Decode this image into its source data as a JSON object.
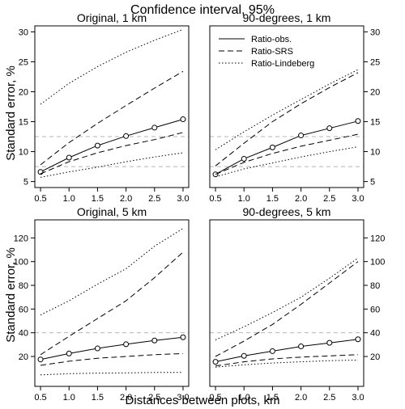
{
  "figure": {
    "title": "Confidence interval, 95%",
    "xlabel": "Distances between plots, km",
    "ylabel": "Standard error, %"
  },
  "legend": {
    "placement": "top-right panel, top-left",
    "entries": [
      {
        "label": "Ratio-obs.",
        "style": "solid",
        "marker": "circle"
      },
      {
        "label": "Ratio-SRS",
        "style": "dashed"
      },
      {
        "label": "Ratio-Lindeberg",
        "style": "dotted"
      }
    ]
  },
  "colors": {
    "line": "#000000",
    "reference_line": "#b5b5b5",
    "background": "#ffffff"
  },
  "chart_data": [
    {
      "type": "line",
      "title": "Original, 1 km",
      "x": [
        0.5,
        1.0,
        1.5,
        2.0,
        2.5,
        3.0
      ],
      "xlim": [
        0.5,
        3.0
      ],
      "ylim": [
        5,
        30
      ],
      "yticks": [
        5,
        10,
        15,
        20,
        25,
        30
      ],
      "ytick_side": "left",
      "reference_lines": [
        12.5,
        7.5
      ],
      "series": [
        {
          "name": "Ratio-obs.",
          "style": "solid",
          "markers": true,
          "values": [
            6.6,
            9.0,
            11.0,
            12.6,
            14.0,
            15.4
          ]
        },
        {
          "name": "Ratio-SRS",
          "style": "dashed",
          "band": "upper",
          "values": [
            7.8,
            11.5,
            14.7,
            17.7,
            20.6,
            23.4
          ]
        },
        {
          "name": "Ratio-SRS",
          "style": "dashed",
          "band": "lower",
          "values": [
            6.3,
            8.3,
            9.8,
            11.0,
            12.0,
            13.2
          ]
        },
        {
          "name": "Ratio-Lindeberg",
          "style": "dotted",
          "band": "upper",
          "values": [
            17.9,
            21.4,
            24.2,
            26.6,
            28.6,
            30.4
          ]
        },
        {
          "name": "Ratio-Lindeberg",
          "style": "dotted",
          "band": "lower",
          "values": [
            5.7,
            6.6,
            7.4,
            8.3,
            9.1,
            9.8
          ]
        }
      ]
    },
    {
      "type": "line",
      "title": "90-degrees, 1 km",
      "x": [
        0.5,
        1.0,
        1.5,
        2.0,
        2.5,
        3.0
      ],
      "xlim": [
        0.5,
        3.0
      ],
      "ylim": [
        5,
        30
      ],
      "yticks": [
        5,
        10,
        15,
        20,
        25,
        30
      ],
      "ytick_side": "right",
      "reference_lines": [
        12.5,
        7.5
      ],
      "series": [
        {
          "name": "Ratio-obs.",
          "style": "solid",
          "markers": true,
          "values": [
            6.2,
            8.8,
            10.7,
            12.7,
            13.9,
            15.1
          ]
        },
        {
          "name": "Ratio-SRS",
          "style": "dashed",
          "band": "upper",
          "values": [
            7.6,
            11.4,
            15.0,
            18.0,
            20.7,
            23.2
          ]
        },
        {
          "name": "Ratio-SRS",
          "style": "dashed",
          "band": "lower",
          "values": [
            6.2,
            8.2,
            9.7,
            10.9,
            11.9,
            12.9
          ]
        },
        {
          "name": "Ratio-Lindeberg",
          "style": "dotted",
          "band": "upper",
          "values": [
            10.3,
            13.3,
            16.1,
            18.7,
            21.3,
            23.7
          ]
        },
        {
          "name": "Ratio-Lindeberg",
          "style": "dotted",
          "band": "lower",
          "values": [
            5.8,
            7.1,
            8.1,
            9.1,
            10.0,
            10.8
          ]
        }
      ]
    },
    {
      "type": "line",
      "title": "Original, 5 km",
      "x": [
        0.5,
        1.0,
        1.5,
        2.0,
        2.5,
        3.0
      ],
      "xlim": [
        0.5,
        3.0
      ],
      "ylim": [
        0,
        130
      ],
      "yticks": [
        20,
        40,
        60,
        80,
        100,
        120
      ],
      "ytick_side": "left",
      "reference_lines": [
        40
      ],
      "series": [
        {
          "name": "Ratio-obs.",
          "style": "solid",
          "markers": true,
          "values": [
            17.5,
            22.5,
            26.8,
            30.3,
            33.5,
            36.2
          ]
        },
        {
          "name": "Ratio-SRS",
          "style": "dashed",
          "band": "upper",
          "values": [
            21.5,
            37.0,
            52.0,
            67.0,
            86.5,
            108.0
          ]
        },
        {
          "name": "Ratio-SRS",
          "style": "dashed",
          "band": "lower",
          "values": [
            12.5,
            16.0,
            18.5,
            20.0,
            21.5,
            22.5
          ]
        },
        {
          "name": "Ratio-Lindeberg",
          "style": "dotted",
          "band": "upper",
          "values": [
            55.0,
            67.0,
            81.0,
            94.0,
            113.0,
            128.0
          ]
        },
        {
          "name": "Ratio-Lindeberg",
          "style": "dotted",
          "band": "lower",
          "values": [
            4.5,
            5.5,
            6.0,
            6.2,
            6.5,
            6.5
          ]
        }
      ]
    },
    {
      "type": "line",
      "title": "90-degrees, 5 km",
      "x": [
        0.5,
        1.0,
        1.5,
        2.0,
        2.5,
        3.0
      ],
      "xlim": [
        0.5,
        3.0
      ],
      "ylim": [
        0,
        130
      ],
      "yticks": [
        20,
        40,
        60,
        80,
        100,
        120
      ],
      "ytick_side": "right",
      "reference_lines": [
        40
      ],
      "series": [
        {
          "name": "Ratio-obs.",
          "style": "solid",
          "markers": true,
          "values": [
            15.5,
            20.5,
            24.5,
            28.5,
            31.5,
            34.5
          ]
        },
        {
          "name": "Ratio-SRS",
          "style": "dashed",
          "band": "upper",
          "values": [
            20.0,
            33.0,
            47.0,
            64.0,
            82.0,
            100.0
          ]
        },
        {
          "name": "Ratio-SRS",
          "style": "dashed",
          "band": "lower",
          "values": [
            12.0,
            15.5,
            18.0,
            19.5,
            20.5,
            21.5
          ]
        },
        {
          "name": "Ratio-Lindeberg",
          "style": "dotted",
          "band": "upper",
          "values": [
            34.0,
            45.0,
            57.0,
            70.0,
            86.0,
            103.0
          ]
        },
        {
          "name": "Ratio-Lindeberg",
          "style": "dotted",
          "band": "lower",
          "values": [
            11.0,
            13.0,
            14.5,
            15.5,
            16.5,
            17.0
          ]
        }
      ]
    }
  ]
}
